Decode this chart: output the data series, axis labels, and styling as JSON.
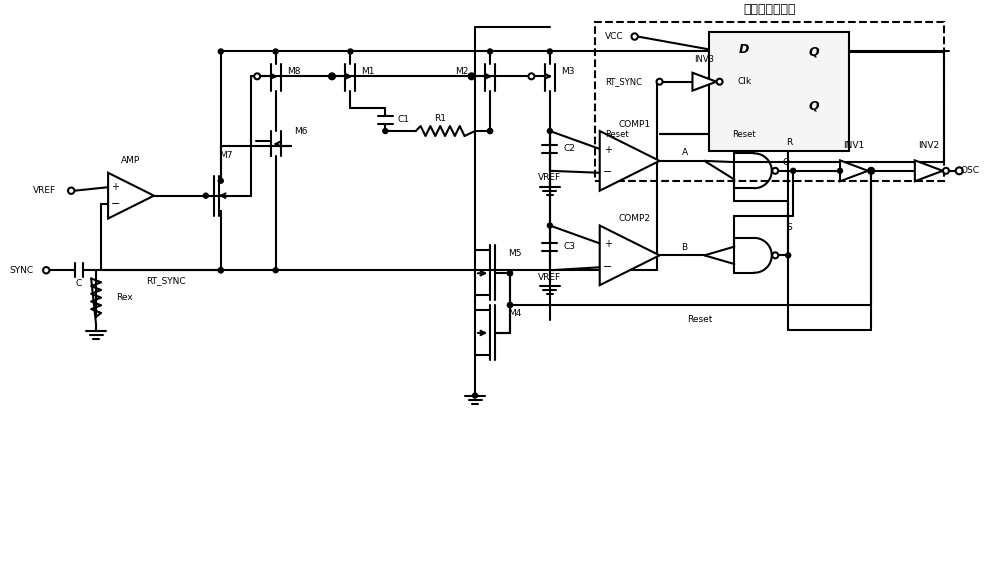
{
  "bg": "#ffffff",
  "lc": "#000000",
  "lw": 1.5,
  "title_cn": "外同步时钟模块",
  "labels": {
    "VREF": "VREF",
    "AMP": "AMP",
    "SYNC": "SYNC",
    "C": "C",
    "RT_SYNC": "RT_SYNC",
    "Rex": "Rex",
    "M4": "M4",
    "M5": "M5",
    "M6": "M6",
    "M7": "M7",
    "M8": "M8",
    "M1": "M1",
    "M2": "M2",
    "M3": "M3",
    "C1": "C1",
    "C2": "C2",
    "C3": "C3",
    "R1": "R1",
    "COMP1": "COMP1",
    "COMP2": "COMP2",
    "INV1": "INV1",
    "INV2": "INV2",
    "INV3": "INV3",
    "OSC": "OSC",
    "VCC": "VCC",
    "Reset": "Reset",
    "D": "D",
    "Q": "Q",
    "Clk": "Clk",
    "A": "A",
    "B": "B",
    "R": "R",
    "S": "S"
  }
}
